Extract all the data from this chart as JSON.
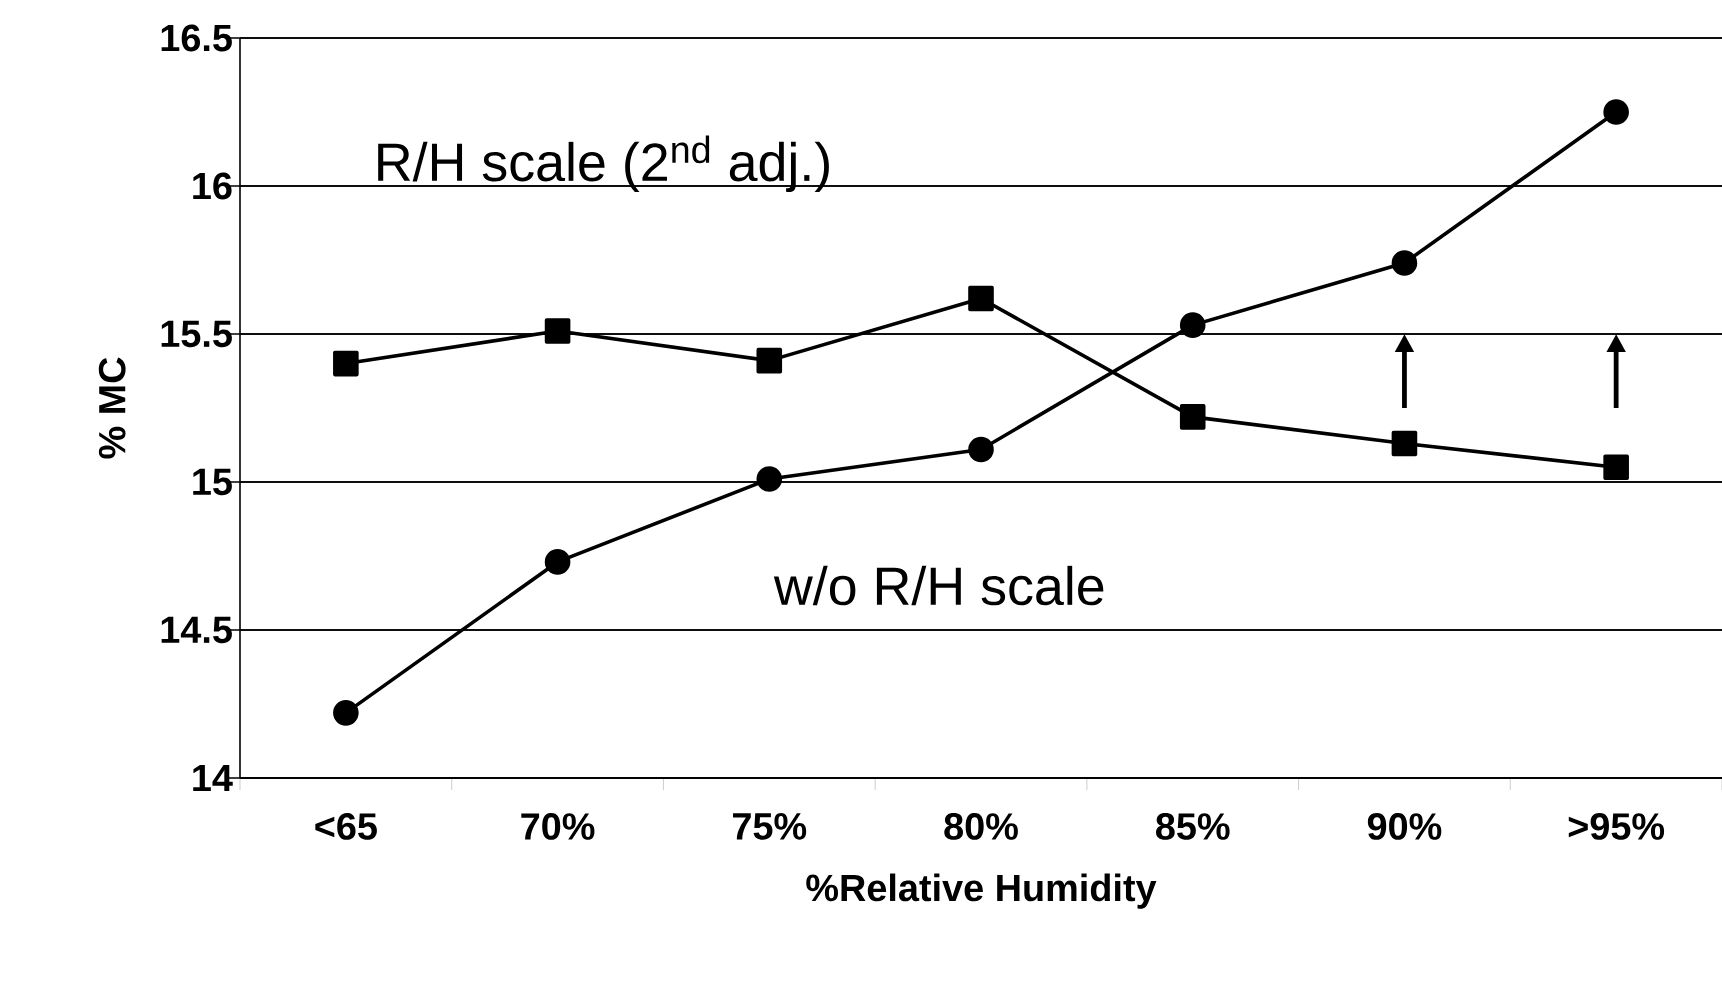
{
  "chart_data": {
    "type": "line",
    "xlabel": "%Relative Humidity",
    "ylabel": "% MC",
    "categories": [
      "<65",
      "70%",
      "75%",
      "80%",
      "85%",
      "90%",
      ">95%"
    ],
    "series": [
      {
        "color": "#000000",
        "marker": "square",
        "values": [
          15.4,
          15.51,
          15.41,
          15.62,
          15.22,
          15.13,
          15.05
        ]
      },
      {
        "color": "#000000",
        "marker": "circle",
        "values": [
          14.22,
          14.73,
          15.01,
          15.11,
          15.53,
          15.74,
          16.25
        ]
      }
    ],
    "ylim": [
      14,
      16.5
    ],
    "yticks": [
      14,
      14.5,
      15,
      15.5,
      16,
      16.5
    ],
    "grid": "y",
    "annotations": [
      "R/H scale (2$^{nd}$ adj.)",
      "w/o R/H scale"
    ]
  }
}
